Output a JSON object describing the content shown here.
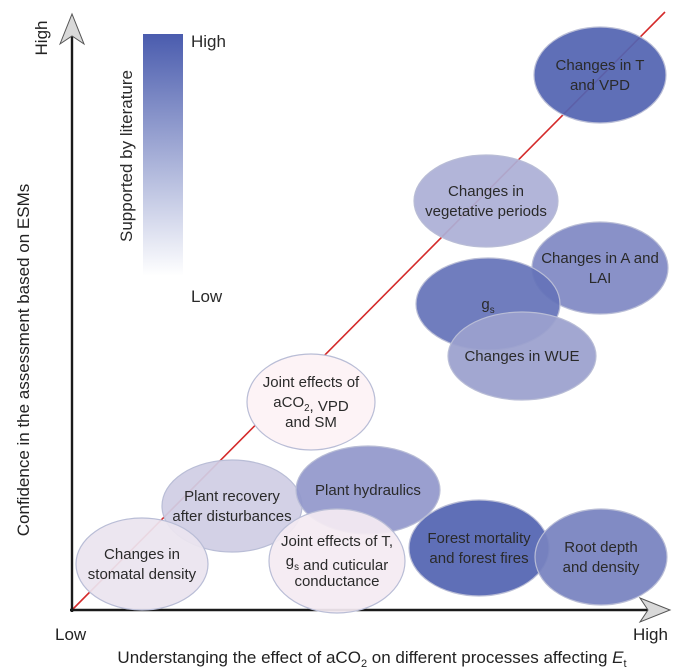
{
  "axes": {
    "y_label": "Confidence in the assessment based on ESMs",
    "y_high": "High",
    "x_low": "Low",
    "x_high": "High",
    "x_label_before": "Understanging the effect of aCO",
    "x_label_sub": "2",
    "x_label_after": " on different processes affecting ",
    "x_label_var": "E",
    "x_label_var_sub": "t"
  },
  "legend": {
    "title": "Supported by literature",
    "high": "High",
    "low": "Low",
    "color_high": "#4a5cae",
    "color_low": "#ffffff"
  },
  "line_color": "#d42a2a",
  "processes": [
    {
      "id": "t-vpd",
      "lines": [
        "Changes in T",
        "and VPD"
      ],
      "support": 0.95
    },
    {
      "id": "veg-periods",
      "lines": [
        "Changes in",
        "vegetative periods"
      ],
      "support": 0.45
    },
    {
      "id": "a-lai",
      "lines": [
        "Changes in A and",
        "LAI"
      ],
      "support": 0.7
    },
    {
      "id": "gs",
      "lines": [
        "g_s"
      ],
      "support": 0.85
    },
    {
      "id": "wue",
      "lines": [
        "Changes in WUE"
      ],
      "support": 0.55
    },
    {
      "id": "joint-aco2",
      "lines": [
        "Joint effects of",
        "aCO_2, VPD",
        "and SM"
      ],
      "support": 0.0
    },
    {
      "id": "recovery",
      "lines": [
        "Plant recovery",
        "after disturbances"
      ],
      "support": 0.25
    },
    {
      "id": "hydraulics",
      "lines": [
        "Plant hydraulics"
      ],
      "support": 0.6
    },
    {
      "id": "stomatal-density",
      "lines": [
        "Changes in",
        "stomatal density"
      ],
      "support": 0.1
    },
    {
      "id": "joint-t",
      "lines": [
        "Joint effects of T,",
        "g_s and cuticular",
        "conductance"
      ],
      "support": 0.05
    },
    {
      "id": "forest",
      "lines": [
        "Forest mortality",
        "and forest fires"
      ],
      "support": 0.95
    },
    {
      "id": "root",
      "lines": [
        "Root depth",
        "and density"
      ],
      "support": 0.75
    }
  ]
}
